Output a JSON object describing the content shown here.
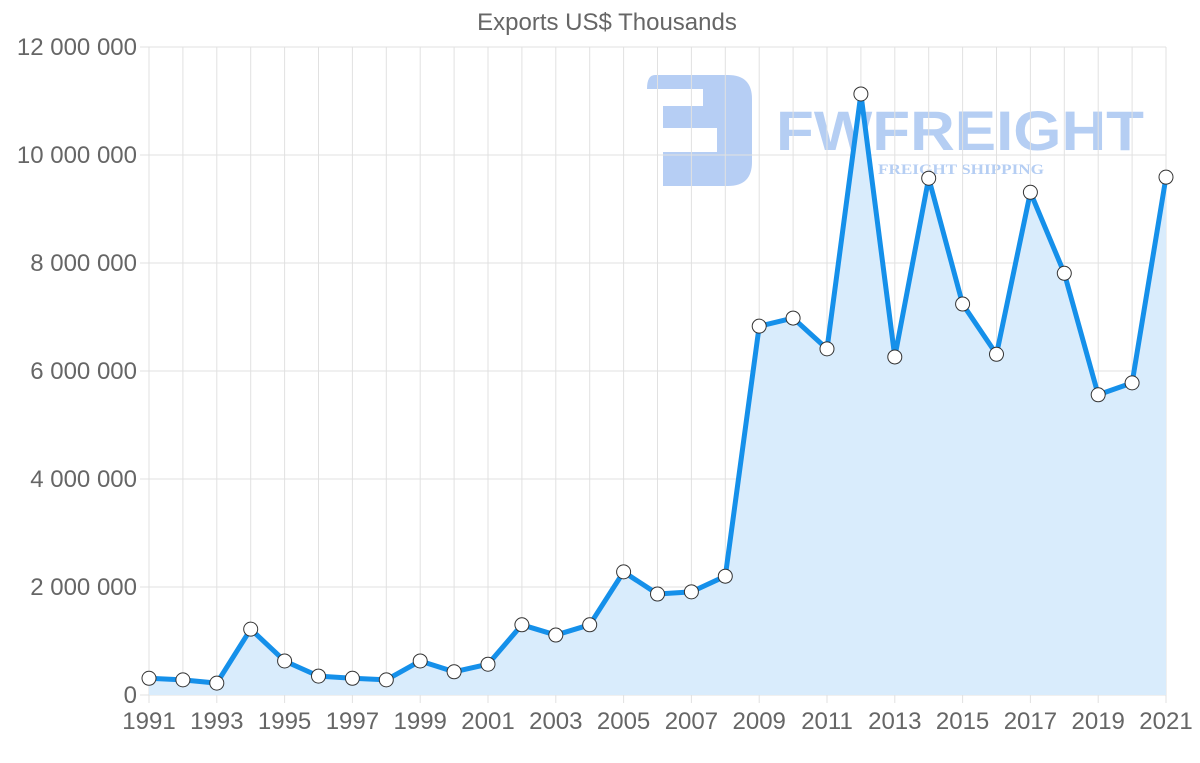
{
  "chart_data": {
    "type": "area",
    "title": "Exports US$ Thousands",
    "xlabel": "",
    "ylabel": "",
    "categories": [
      "1991",
      "1992",
      "1993",
      "1994",
      "1995",
      "1996",
      "1997",
      "1998",
      "1999",
      "2000",
      "2001",
      "2002",
      "2003",
      "2004",
      "2005",
      "2006",
      "2007",
      "2008",
      "2009",
      "2010",
      "2011",
      "2012",
      "2013",
      "2014",
      "2015",
      "2016",
      "2017",
      "2018",
      "2019",
      "2020",
      "2021"
    ],
    "series": [
      {
        "name": "Exports US$ Thousands",
        "values": [
          310000,
          280000,
          220000,
          1220000,
          630000,
          350000,
          310000,
          280000,
          630000,
          430000,
          570000,
          1300000,
          1110000,
          1300000,
          2280000,
          1870000,
          1910000,
          2200000,
          6830000,
          6980000,
          6410000,
          11130000,
          6260000,
          9570000,
          7240000,
          6310000,
          9310000,
          7810000,
          5560000,
          5780000,
          9590000
        ],
        "line_color": "#1590ea",
        "fill_color": "#d9ecfc",
        "marker_fill": "#ffffff",
        "marker_stroke": "#333333"
      }
    ],
    "xtick_labels": [
      "1991",
      "1993",
      "1995",
      "1997",
      "1999",
      "2001",
      "2003",
      "2005",
      "2007",
      "2009",
      "2011",
      "2013",
      "2015",
      "2017",
      "2019",
      "2021"
    ],
    "ytick_labels": [
      "0",
      "2 000 000",
      "4 000 000",
      "6 000 000",
      "8 000 000",
      "10 000 000",
      "12 000 000"
    ],
    "yticks": [
      0,
      2000000,
      4000000,
      6000000,
      8000000,
      10000000,
      12000000
    ],
    "ylim": [
      0,
      12000000
    ],
    "grid": true,
    "legend": "none"
  },
  "watermark": {
    "brand": "FWFREIGHT",
    "tagline": "FREIGHT SHIPPING",
    "color": "#a9c6f2"
  }
}
